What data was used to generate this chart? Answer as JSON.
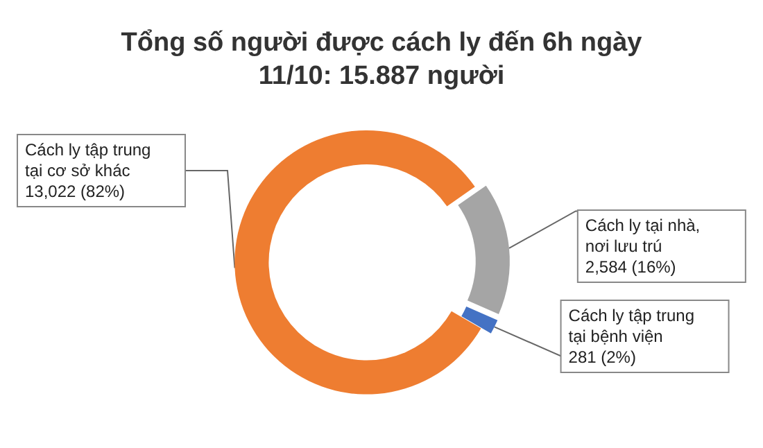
{
  "chart_data": {
    "type": "donut",
    "title": "Tổng số người được cách ly đến 6h ngày\n11/10: 15.887 người",
    "categories": [
      "Cách ly tập trung tại cơ sở khác",
      "Cách ly tại nhà, nơi lưu trú",
      "Cách ly tập trung tại bệnh viện"
    ],
    "values": [
      13022,
      2584,
      281
    ],
    "value_labels": [
      "13,022 (82%)",
      "2,584 (16%)",
      "281 (2%)"
    ],
    "colors": [
      "#ee7d31",
      "#a5a5a5",
      "#4472c4"
    ],
    "legend": false
  }
}
